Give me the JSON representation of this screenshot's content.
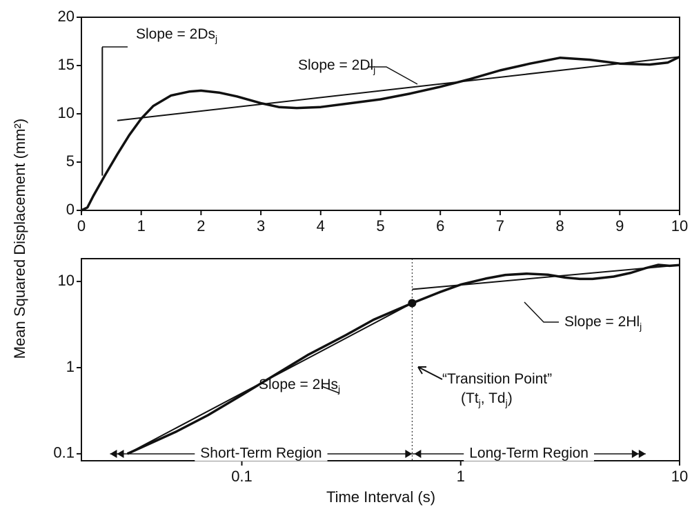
{
  "chart_data": [
    {
      "type": "line",
      "ylabel": "Mean Squared Displacement (mm²)",
      "xlim": [
        0,
        10
      ],
      "xticks": [
        0,
        1,
        2,
        3,
        4,
        5,
        6,
        7,
        8,
        9,
        10
      ],
      "ylim": [
        0,
        20
      ],
      "yticks": [
        0,
        5,
        10,
        15,
        20
      ],
      "series": [
        {
          "color": "#111111",
          "width": 3.5,
          "x": [
            0,
            0.1,
            0.2,
            0.4,
            0.6,
            0.8,
            1,
            1.2,
            1.5,
            1.8,
            2,
            2.3,
            2.6,
            3,
            3.3,
            3.6,
            4,
            4.5,
            5,
            5.5,
            6,
            6.5,
            7,
            7.5,
            8,
            8.5,
            9,
            9.5,
            9.8,
            10
          ],
          "values": [
            0,
            0.3,
            1.5,
            3.7,
            5.8,
            7.8,
            9.5,
            10.8,
            11.9,
            12.3,
            12.4,
            12.2,
            11.8,
            11.1,
            10.7,
            10.6,
            10.7,
            11.1,
            11.5,
            12.1,
            12.8,
            13.6,
            14.5,
            15.2,
            15.8,
            15.6,
            15.2,
            15.1,
            15.3,
            15.9
          ]
        },
        {
          "color": "#111111",
          "width": 2,
          "x": [
            0.35,
            0.35
          ],
          "values": [
            3.6,
            16.9
          ]
        },
        {
          "color": "#111111",
          "width": 2,
          "x": [
            0.6,
            10
          ],
          "values": [
            9.3,
            15.9
          ]
        }
      ],
      "annotations": [
        {
          "parts": [
            {
              "text": "Slope = 2Ds"
            },
            {
              "text": "j",
              "sub": true
            }
          ]
        },
        {
          "parts": [
            {
              "text": "Slope = 2Dl"
            },
            {
              "text": "j",
              "sub": true
            }
          ]
        }
      ]
    },
    {
      "type": "line",
      "xlabel": "Time Interval (s)",
      "log_x": true,
      "log_y": true,
      "xlim": [
        0.0185,
        10
      ],
      "xticks": [
        0.1,
        1,
        10
      ],
      "ylim": [
        0.083,
        18.4
      ],
      "yticks": [
        0.1,
        1,
        10
      ],
      "series": [
        {
          "color": "#111111",
          "width": 3.5,
          "x": [
            0.03,
            0.05,
            0.07,
            0.1,
            0.15,
            0.2,
            0.3,
            0.4,
            0.6,
            0.8,
            1,
            1.3,
            1.6,
            2,
            2.5,
            3,
            3.5,
            4,
            5,
            6,
            7,
            8,
            9,
            10
          ],
          "values": [
            0.1,
            0.18,
            0.28,
            0.48,
            0.9,
            1.4,
            2.4,
            3.6,
            5.6,
            7.5,
            9.2,
            10.8,
            11.9,
            12.3,
            12,
            11.1,
            10.7,
            10.7,
            11.4,
            12.6,
            14.3,
            15.6,
            15.2,
            15.5
          ]
        },
        {
          "color": "#111111",
          "width": 2,
          "x": [
            0.03,
            0.6
          ],
          "values": [
            0.1,
            5.6
          ]
        },
        {
          "color": "#111111",
          "width": 2,
          "x": [
            0.6,
            10
          ],
          "values": [
            8.1,
            15.5
          ]
        }
      ],
      "transition": {
        "x": 0.6,
        "y": 5.6
      },
      "regions": [
        {
          "label": "Short-Term Region",
          "range": [
            0.025,
            0.6
          ]
        },
        {
          "label": "Long-Term Region",
          "range": [
            0.6,
            7
          ]
        }
      ],
      "annotations": [
        {
          "parts": [
            {
              "text": "Slope = 2Hs"
            },
            {
              "text": "j",
              "sub": true
            }
          ]
        },
        {
          "parts": [
            {
              "text": "Slope = 2Hl"
            },
            {
              "text": "j",
              "sub": true
            }
          ]
        },
        {
          "parts": [
            {
              "text": "“Transition Point”"
            }
          ]
        },
        {
          "parts": [
            {
              "text": "(Tt"
            },
            {
              "text": "j",
              "sub": true
            },
            {
              "text": ", Td"
            },
            {
              "text": "j",
              "sub": true
            },
            {
              "text": ")"
            }
          ]
        }
      ]
    }
  ]
}
